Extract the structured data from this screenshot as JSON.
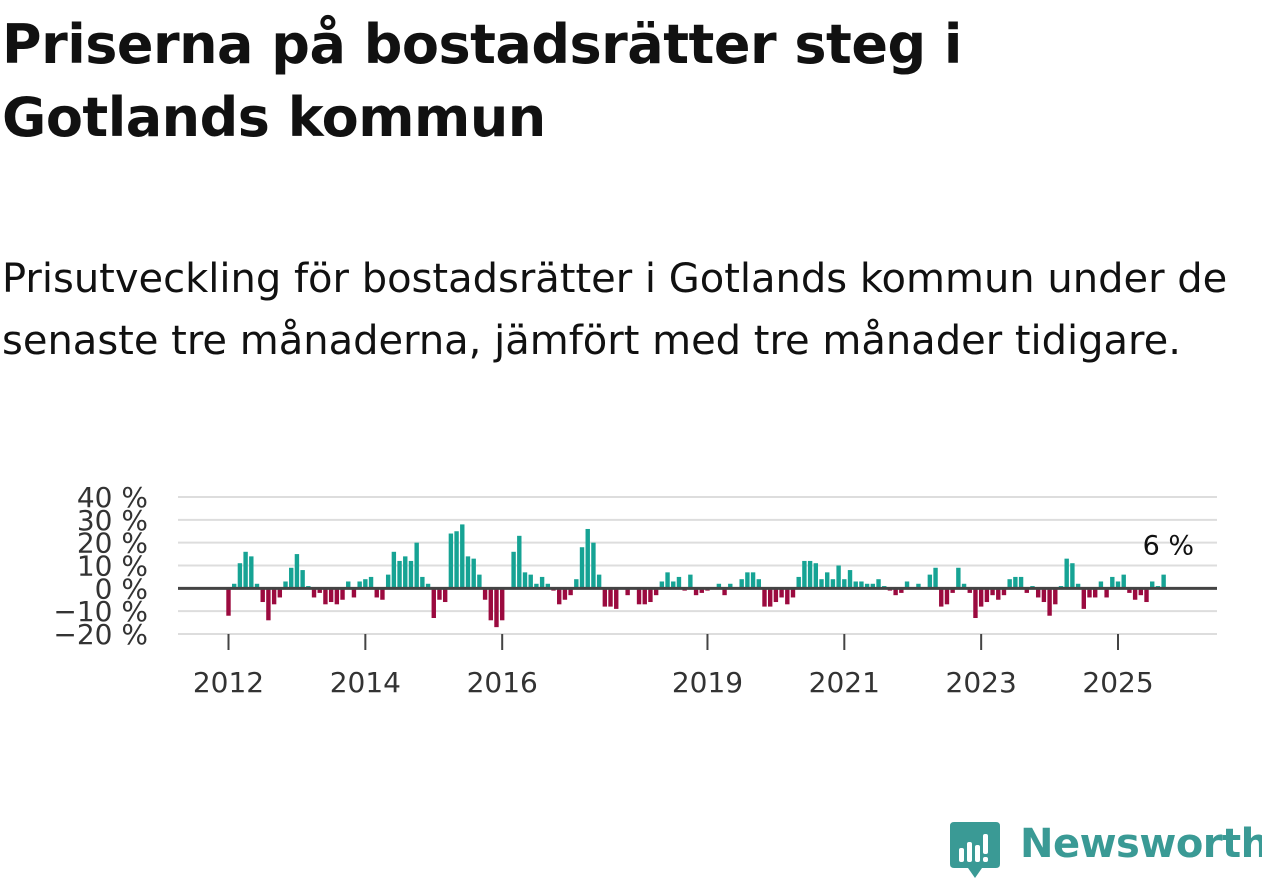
{
  "header": {
    "title": "Priserna på bostadsrätter steg i Gotlands kommun",
    "subtitle": "Prisutveckling för bostadsrätter i Gotlands kommun under de senaste tre månaderna, jämfört med tre månader tidigare."
  },
  "brand": {
    "name": "Newsworthy",
    "color": "#3a9a95",
    "icon": "newsworthy-logo-icon"
  },
  "colors": {
    "positive": "#16a394",
    "negative": "#9b0a3f",
    "grid": "#dddddd",
    "zero": "#444444"
  },
  "chart_data": {
    "type": "bar",
    "title": "",
    "xlabel": "",
    "ylabel": "",
    "ylim": [
      -20,
      40
    ],
    "yticks": [
      -20,
      -10,
      0,
      10,
      20,
      30,
      40
    ],
    "ytick_labels": [
      "−20 %",
      "−10 %",
      "0 %",
      "10 %",
      "20 %",
      "30 %",
      "40 %"
    ],
    "xticks": [
      {
        "label": "2012",
        "index": 0
      },
      {
        "label": "2014",
        "index": 24
      },
      {
        "label": "2016",
        "index": 48
      },
      {
        "label": "2019",
        "index": 84
      },
      {
        "label": "2021",
        "index": 108
      },
      {
        "label": "2023",
        "index": 132
      },
      {
        "label": "2025",
        "index": 156
      }
    ],
    "last_value_label": "6 %",
    "start": "2012-01",
    "values": [
      -12,
      2,
      11,
      16,
      14,
      2,
      -6,
      -14,
      -7,
      -4,
      3,
      9,
      15,
      8,
      1,
      -4,
      -2,
      -7,
      -6,
      -7,
      -5,
      3,
      -4,
      3,
      4,
      5,
      -4,
      -5,
      6,
      16,
      12,
      14,
      12,
      20,
      5,
      2,
      -13,
      -5,
      -6,
      24,
      25,
      28,
      14,
      13,
      6,
      -5,
      -14,
      -17,
      -14,
      0,
      16,
      23,
      7,
      6,
      2,
      5,
      2,
      -1,
      -7,
      -5,
      -3,
      4,
      18,
      26,
      20,
      6,
      -8,
      -8,
      -9,
      0,
      -3,
      0,
      -7,
      -7,
      -6,
      -3,
      3,
      7,
      3,
      5,
      -1,
      6,
      -3,
      -2,
      -1,
      0,
      2,
      -3,
      2,
      0,
      4,
      7,
      7,
      4,
      -8,
      -8,
      -6,
      -4,
      -7,
      -4,
      5,
      12,
      12,
      11,
      4,
      7,
      4,
      10,
      4,
      8,
      3,
      3,
      2,
      2,
      4,
      1,
      -1,
      -3,
      -2,
      3,
      0,
      2,
      0,
      6,
      9,
      -8,
      -7,
      -2,
      9,
      2,
      -2,
      -13,
      -8,
      -6,
      -3,
      -5,
      -3,
      4,
      5,
      5,
      -2,
      1,
      -4,
      -6,
      -12,
      -7,
      1,
      13,
      11,
      2,
      -9,
      -4,
      -4,
      3,
      -4,
      5,
      3,
      6,
      -2,
      -5,
      -3,
      -6,
      3,
      1,
      6
    ]
  }
}
